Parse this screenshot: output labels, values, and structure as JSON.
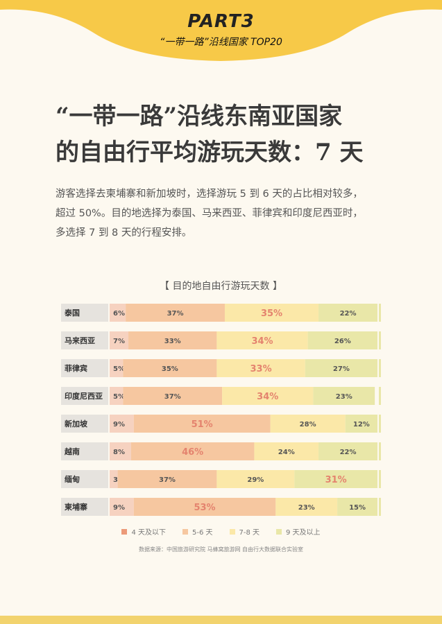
{
  "header": {
    "part": "PART3",
    "subtitle": "“一带一路”沿线国家 TOP20"
  },
  "headline": {
    "line1": "“一带一路”沿线东南亚国家",
    "line2": "的自由行平均游玩天数：7 天"
  },
  "intro": {
    "line1": "游客选择去柬埔寨和新加坡时，选择游玩 5 到 6 天的占比相对较多，",
    "line2": "超过 50%。目的地选择为泰国、马来西亚、菲律宾和印度尼西亚时，",
    "line3": "多选择 7 到 8 天的行程安排。"
  },
  "source": "数据来源：中国旅游研究院 马蜂窝旅游网 自由行大数据联合实验室",
  "colors": {
    "banner": "#f7c948",
    "label_bg": "#e6e3de",
    "seg1": "#f6d2c0",
    "seg2": "#f6c7a0",
    "seg3": "#fbe8a8",
    "seg4": "#e9e7a8",
    "highlight_text": "#e4836e"
  },
  "chart_data": {
    "type": "bar",
    "orientation": "horizontal-stacked",
    "title": "【 目的地自由行游玩天数 】",
    "categories": [
      "泰国",
      "马来西亚",
      "菲律宾",
      "印度尼西亚",
      "新加坡",
      "越南",
      "缅甸",
      "柬埔寨"
    ],
    "series": [
      {
        "name": "4 天及以下",
        "values": [
          6,
          7,
          5,
          5,
          9,
          8,
          3,
          9
        ]
      },
      {
        "name": "5-6 天",
        "values": [
          37,
          33,
          35,
          37,
          51,
          46,
          37,
          53
        ]
      },
      {
        "name": "7-8 天",
        "values": [
          35,
          34,
          33,
          34,
          28,
          24,
          29,
          23
        ]
      },
      {
        "name": "9 天及以上",
        "values": [
          22,
          26,
          27,
          23,
          12,
          22,
          31,
          15
        ]
      }
    ],
    "highlighted": [
      {
        "category": "泰国",
        "series": "7-8 天"
      },
      {
        "category": "马来西亚",
        "series": "7-8 天"
      },
      {
        "category": "菲律宾",
        "series": "7-8 天"
      },
      {
        "category": "印度尼西亚",
        "series": "7-8 天"
      },
      {
        "category": "新加坡",
        "series": "5-6 天"
      },
      {
        "category": "越南",
        "series": "5-6 天"
      },
      {
        "category": "缅甸",
        "series": "9 天及以上"
      },
      {
        "category": "柬埔寨",
        "series": "5-6 天"
      }
    ],
    "unit": "%",
    "xlim": [
      0,
      100
    ],
    "legend_position": "bottom"
  }
}
